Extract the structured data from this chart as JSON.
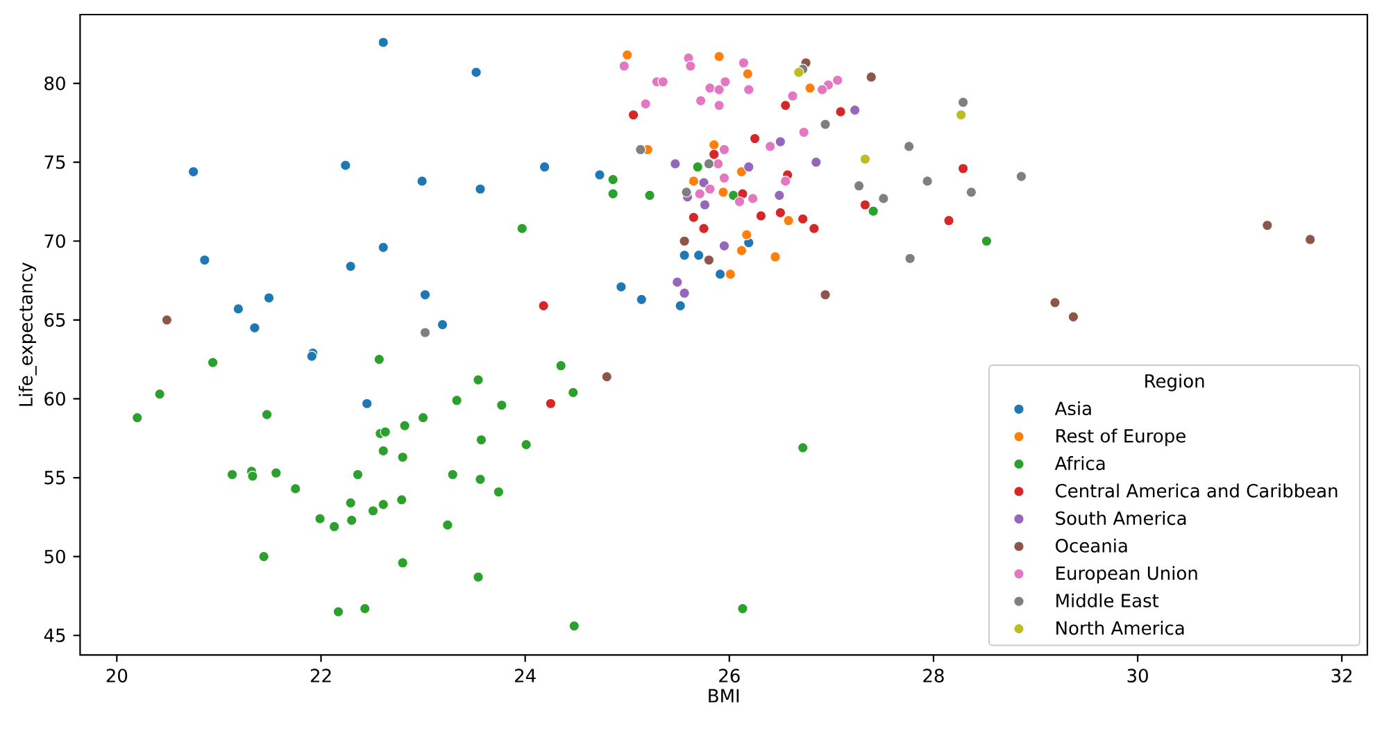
{
  "chart_data": {
    "type": "scatter",
    "xlabel": "BMI",
    "ylabel": "Life_expectancy",
    "legend_title": "Region",
    "legend": "bottom right",
    "marker": "circle",
    "xlim": [
      19.64,
      32.25
    ],
    "ylim": [
      43.76,
      84.36
    ],
    "xticks": [
      20,
      22,
      24,
      26,
      28,
      30,
      32
    ],
    "yticks": [
      45,
      50,
      55,
      60,
      65,
      70,
      75,
      80
    ],
    "series": [
      {
        "name": "Asia",
        "color": "#1f77b4",
        "x": [
          22.61,
          23.52,
          20.75,
          22.24,
          22.99,
          23.56,
          20.86,
          22.61,
          22.29,
          23.02,
          21.49,
          21.19,
          21.35,
          23.19,
          21.92,
          21.91,
          22.45,
          24.19,
          24.73,
          24.94,
          25.14,
          25.52,
          25.91,
          25.56,
          25.7,
          26.19
        ],
        "values": [
          82.6,
          80.7,
          74.4,
          74.8,
          73.8,
          73.3,
          68.8,
          69.6,
          68.4,
          66.6,
          66.4,
          65.7,
          64.5,
          64.7,
          62.9,
          62.7,
          59.7,
          74.7,
          74.2,
          67.1,
          66.3,
          65.9,
          67.9,
          69.1,
          69.1,
          69.9
        ]
      },
      {
        "name": "Rest of Europe",
        "color": "#ff7f0e",
        "x": [
          25.0,
          25.9,
          26.18,
          26.79,
          25.2,
          25.85,
          26.12,
          25.65,
          25.94,
          26.58,
          26.17,
          26.12,
          26.45,
          26.01
        ],
        "values": [
          81.8,
          81.7,
          80.6,
          79.7,
          75.8,
          76.1,
          74.4,
          73.8,
          73.1,
          71.3,
          70.4,
          69.4,
          69.0,
          67.9
        ]
      },
      {
        "name": "Africa",
        "color": "#2ca02c",
        "x": [
          23.97,
          24.86,
          24.86,
          25.22,
          25.69,
          26.04,
          27.41,
          24.35,
          24.47,
          26.72,
          26.13,
          24.48,
          28.52,
          20.94,
          20.42,
          20.2,
          21.47,
          22.57,
          23.54,
          23.33,
          23.77,
          23.0,
          22.82,
          22.58,
          22.63,
          22.61,
          22.8,
          23.57,
          24.01,
          21.13,
          21.32,
          21.33,
          21.56,
          21.75,
          22.36,
          23.29,
          23.56,
          23.74,
          22.29,
          22.61,
          22.79,
          22.51,
          21.99,
          22.13,
          22.3,
          23.24,
          21.44,
          22.8,
          23.54,
          22.17,
          22.43
        ],
        "values": [
          70.8,
          73.9,
          73.0,
          72.9,
          74.7,
          72.9,
          71.9,
          62.1,
          60.4,
          56.9,
          46.7,
          45.6,
          70.0,
          62.3,
          60.3,
          58.8,
          59.0,
          62.5,
          61.2,
          59.9,
          59.6,
          58.8,
          58.3,
          57.8,
          57.9,
          56.7,
          56.3,
          57.4,
          57.1,
          55.2,
          55.4,
          55.1,
          55.3,
          54.3,
          55.2,
          55.2,
          54.9,
          54.1,
          53.4,
          53.3,
          53.6,
          52.9,
          52.4,
          51.9,
          52.3,
          52.0,
          50.0,
          49.6,
          48.7,
          46.5,
          46.7
        ]
      },
      {
        "name": "Central America and Caribbean",
        "color": "#d62728",
        "x": [
          24.18,
          24.25,
          25.06,
          26.55,
          27.09,
          26.25,
          25.85,
          26.13,
          26.57,
          25.65,
          25.75,
          26.31,
          26.5,
          26.72,
          26.83,
          27.33,
          28.29,
          28.15
        ],
        "values": [
          65.9,
          59.7,
          78.0,
          78.6,
          78.2,
          76.5,
          75.5,
          73.0,
          74.2,
          71.5,
          70.8,
          71.6,
          71.8,
          71.4,
          70.8,
          72.3,
          74.6,
          71.3
        ]
      },
      {
        "name": "South America",
        "color": "#9467bd",
        "x": [
          27.23,
          26.5,
          25.47,
          26.19,
          25.75,
          25.59,
          25.76,
          26.49,
          26.85,
          25.95,
          25.49,
          25.56
        ],
        "values": [
          78.3,
          76.3,
          74.9,
          74.7,
          73.7,
          72.8,
          72.3,
          72.9,
          75.0,
          69.7,
          67.4,
          66.7
        ]
      },
      {
        "name": "Oceania",
        "color": "#8c564b",
        "x": [
          20.49,
          24.8,
          26.75,
          27.39,
          25.56,
          25.8,
          26.94,
          29.19,
          29.37,
          31.27,
          31.69
        ],
        "values": [
          65.0,
          61.4,
          81.3,
          80.4,
          70.0,
          68.8,
          66.6,
          66.1,
          65.2,
          71.0,
          70.1
        ]
      },
      {
        "name": "European Union",
        "color": "#e377c2",
        "x": [
          24.97,
          25.6,
          25.62,
          26.14,
          25.29,
          25.35,
          25.81,
          25.9,
          25.96,
          26.19,
          25.72,
          25.9,
          25.18,
          26.97,
          26.91,
          27.06,
          26.62,
          26.73,
          26.4,
          25.95,
          25.89,
          25.95,
          25.71,
          25.81,
          26.1,
          26.23,
          26.55
        ],
        "values": [
          81.1,
          81.6,
          81.1,
          81.3,
          80.1,
          80.1,
          79.7,
          79.6,
          80.1,
          79.6,
          78.9,
          78.6,
          78.7,
          79.9,
          79.6,
          80.2,
          79.2,
          76.9,
          76.0,
          75.8,
          74.9,
          74.0,
          73.0,
          73.3,
          72.5,
          72.7,
          73.8
        ]
      },
      {
        "name": "Middle East",
        "color": "#7f7f7f",
        "x": [
          23.02,
          26.72,
          26.94,
          25.13,
          25.8,
          25.58,
          27.27,
          27.51,
          27.76,
          27.77,
          28.29,
          27.94,
          28.37,
          28.86
        ],
        "values": [
          64.2,
          80.9,
          77.4,
          75.8,
          74.9,
          73.1,
          73.5,
          72.7,
          76.0,
          68.9,
          78.8,
          73.8,
          73.1,
          74.1
        ]
      },
      {
        "name": "North America",
        "color": "#bcbd22",
        "x": [
          26.68,
          27.33,
          28.27
        ],
        "values": [
          80.7,
          75.2,
          78.0
        ]
      }
    ]
  }
}
